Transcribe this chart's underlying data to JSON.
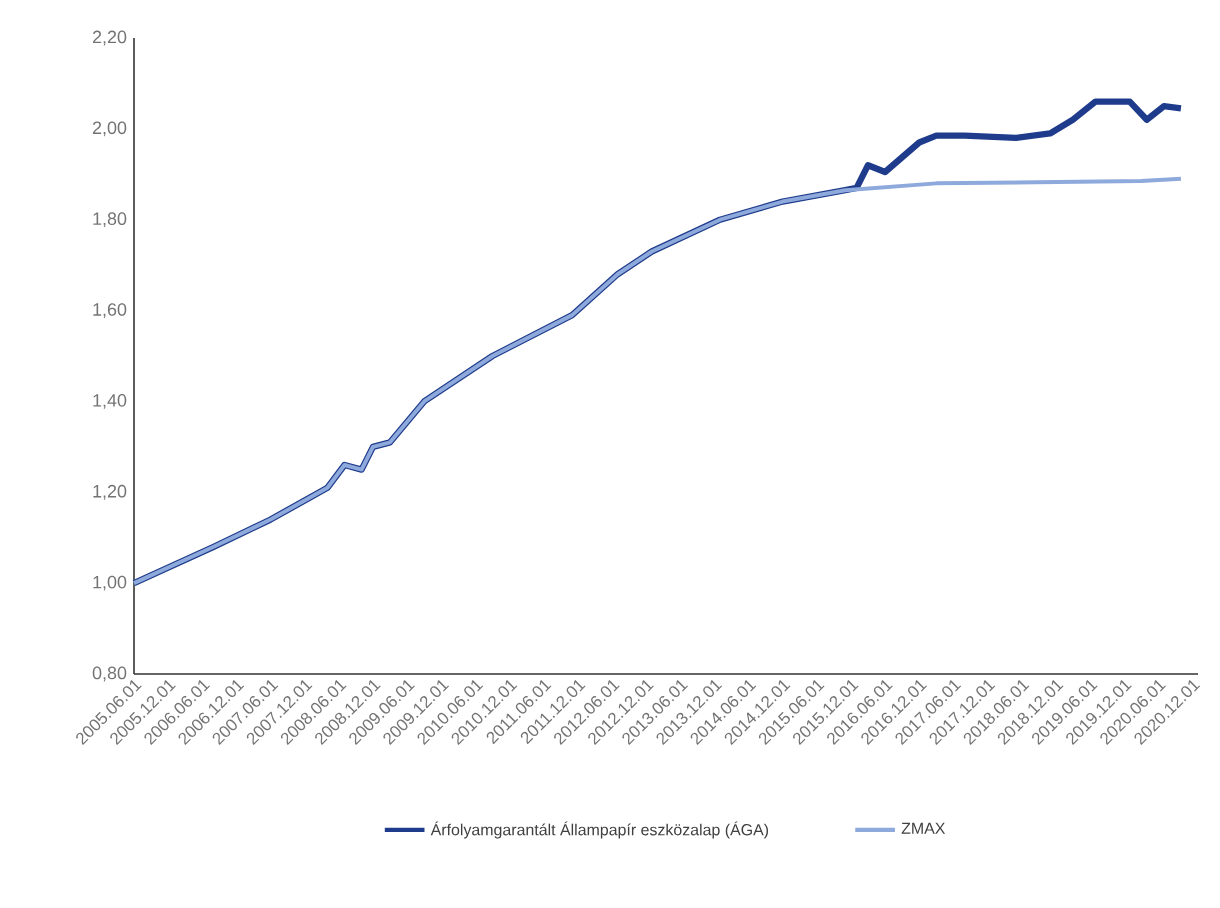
{
  "chart_data": {
    "type": "line",
    "series": [
      {
        "name": "Árfolyamgarantált Állampapír eszközalap (ÁGA)",
        "color": "#1f3c8c",
        "x": [
          "2005-06",
          "2006-08",
          "2007-06",
          "2008-04",
          "2008-07",
          "2008-10",
          "2008-12",
          "2009-03",
          "2009-09",
          "2010-09",
          "2011-11",
          "2012-07",
          "2013-01",
          "2014-01",
          "2014-12",
          "2015-11",
          "2016-01",
          "2016-03",
          "2016-06",
          "2016-12",
          "2017-03",
          "2017-08",
          "2018-05",
          "2018-11",
          "2019-03",
          "2019-07",
          "2020-01",
          "2020-04",
          "2020-07",
          "2020-10"
        ],
        "values": [
          1.0,
          1.08,
          1.14,
          1.21,
          1.26,
          1.25,
          1.3,
          1.31,
          1.4,
          1.5,
          1.59,
          1.68,
          1.73,
          1.8,
          1.84,
          1.865,
          1.87,
          1.92,
          1.905,
          1.97,
          1.985,
          1.985,
          1.98,
          1.99,
          2.02,
          2.06,
          2.06,
          2.02,
          2.05,
          2.045
        ]
      },
      {
        "name": "ZMAX",
        "color": "#8ea9db",
        "x": [
          "2005-06",
          "2006-08",
          "2007-06",
          "2008-04",
          "2008-07",
          "2008-10",
          "2008-12",
          "2009-03",
          "2009-09",
          "2010-09",
          "2011-11",
          "2012-07",
          "2013-01",
          "2014-01",
          "2014-12",
          "2015-11",
          "2017-03",
          "2020-03",
          "2020-10"
        ],
        "values": [
          1.0,
          1.08,
          1.14,
          1.21,
          1.26,
          1.25,
          1.3,
          1.31,
          1.4,
          1.5,
          1.59,
          1.68,
          1.73,
          1.8,
          1.84,
          1.865,
          1.88,
          1.885,
          1.89
        ]
      }
    ],
    "xlim": [
      "2005-06-01",
      "2021-01-01"
    ],
    "xticks": [
      {
        "value": "2005-06-01",
        "label": "2005.06.01"
      },
      {
        "value": "2005-12-01",
        "label": "2005.12.01"
      },
      {
        "value": "2006-06-01",
        "label": "2006.06.01"
      },
      {
        "value": "2006-12-01",
        "label": "2006.12.01"
      },
      {
        "value": "2007-06-01",
        "label": "2007.06.01"
      },
      {
        "value": "2007-12-01",
        "label": "2007.12.01"
      },
      {
        "value": "2008-06-01",
        "label": "2008.06.01"
      },
      {
        "value": "2008-12-01",
        "label": "2008.12.01"
      },
      {
        "value": "2009-06-01",
        "label": "2009.06.01"
      },
      {
        "value": "2009-12-01",
        "label": "2009.12.01"
      },
      {
        "value": "2010-06-01",
        "label": "2010.06.01"
      },
      {
        "value": "2010-12-01",
        "label": "2010.12.01"
      },
      {
        "value": "2011-06-01",
        "label": "2011.06.01"
      },
      {
        "value": "2011-12-01",
        "label": "2011.12.01"
      },
      {
        "value": "2012-06-01",
        "label": "2012.06.01"
      },
      {
        "value": "2012-12-01",
        "label": "2012.12.01"
      },
      {
        "value": "2013-06-01",
        "label": "2013.06.01"
      },
      {
        "value": "2013-12-01",
        "label": "2013.12.01"
      },
      {
        "value": "2014-06-01",
        "label": "2014.06.01"
      },
      {
        "value": "2014-12-01",
        "label": "2014.12.01"
      },
      {
        "value": "2015-06-01",
        "label": "2015.06.01"
      },
      {
        "value": "2015-12-01",
        "label": "2015.12.01"
      },
      {
        "value": "2016-06-01",
        "label": "2016.06.01"
      },
      {
        "value": "2016-12-01",
        "label": "2016.12.01"
      },
      {
        "value": "2017-06-01",
        "label": "2017.06.01"
      },
      {
        "value": "2017-12-01",
        "label": "2017.12.01"
      },
      {
        "value": "2018-06-01",
        "label": "2018.06.01"
      },
      {
        "value": "2018-12-01",
        "label": "2018.12.01"
      },
      {
        "value": "2019-06-01",
        "label": "2019.06.01"
      },
      {
        "value": "2019-12-01",
        "label": "2019.12.01"
      },
      {
        "value": "2020-06-01",
        "label": "2020.06.01"
      },
      {
        "value": "2020-12-01",
        "label": "2020.12.01"
      }
    ],
    "ylim": [
      0.8,
      2.2
    ],
    "yticks": [
      {
        "value": 0.8,
        "label": "0,80"
      },
      {
        "value": 1.0,
        "label": "1,00"
      },
      {
        "value": 1.2,
        "label": "1,20"
      },
      {
        "value": 1.4,
        "label": "1,40"
      },
      {
        "value": 1.6,
        "label": "1,60"
      },
      {
        "value": 1.8,
        "label": "1,80"
      },
      {
        "value": 2.0,
        "label": "2,00"
      },
      {
        "value": 2.2,
        "label": "2,20"
      }
    ],
    "legend": "bottom",
    "grid": false,
    "marker": "none",
    "line_style": "solid"
  }
}
